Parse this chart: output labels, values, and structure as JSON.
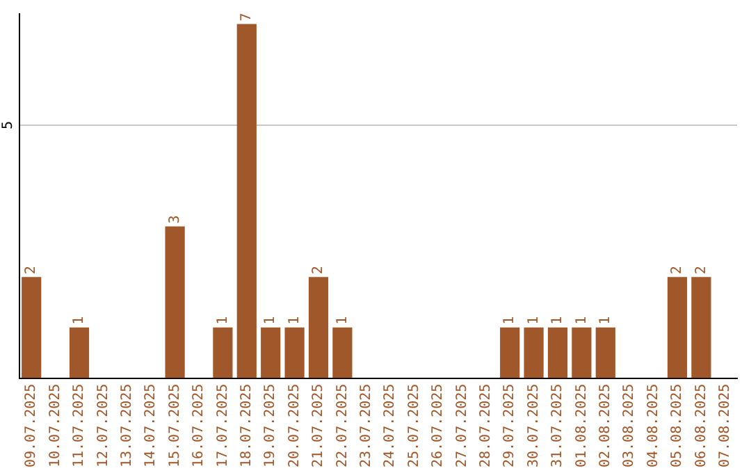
{
  "chart_data": {
    "type": "bar",
    "categories": [
      "09.07.2025",
      "10.07.2025",
      "11.07.2025",
      "12.07.2025",
      "13.07.2025",
      "14.07.2025",
      "15.07.2025",
      "16.07.2025",
      "17.07.2025",
      "18.07.2025",
      "19.07.2025",
      "20.07.2025",
      "21.07.2025",
      "22.07.2025",
      "23.07.2025",
      "24.07.2025",
      "25.07.2025",
      "26.07.2025",
      "27.07.2025",
      "28.07.2025",
      "29.07.2025",
      "30.07.2025",
      "31.07.2025",
      "01.08.2025",
      "02.08.2025",
      "03.08.2025",
      "04.08.2025",
      "05.08.2025",
      "06.08.2025",
      "07.08.2025"
    ],
    "values": [
      2,
      0,
      1,
      0,
      0,
      0,
      3,
      0,
      1,
      7,
      1,
      1,
      2,
      1,
      0,
      0,
      0,
      0,
      0,
      0,
      1,
      1,
      1,
      1,
      1,
      0,
      0,
      2,
      2,
      0
    ],
    "value_labels": [
      "2",
      null,
      "1",
      null,
      null,
      null,
      "3",
      null,
      "1",
      "7",
      "1",
      "1",
      "2",
      "1",
      null,
      null,
      null,
      null,
      null,
      null,
      "1",
      "1",
      "1",
      "1",
      "1",
      null,
      null,
      "2",
      "2",
      null
    ],
    "color": "#a0572a",
    "ylim": [
      0,
      7.2
    ],
    "yticks": [
      5
    ],
    "grid": "y",
    "legend": false
  }
}
